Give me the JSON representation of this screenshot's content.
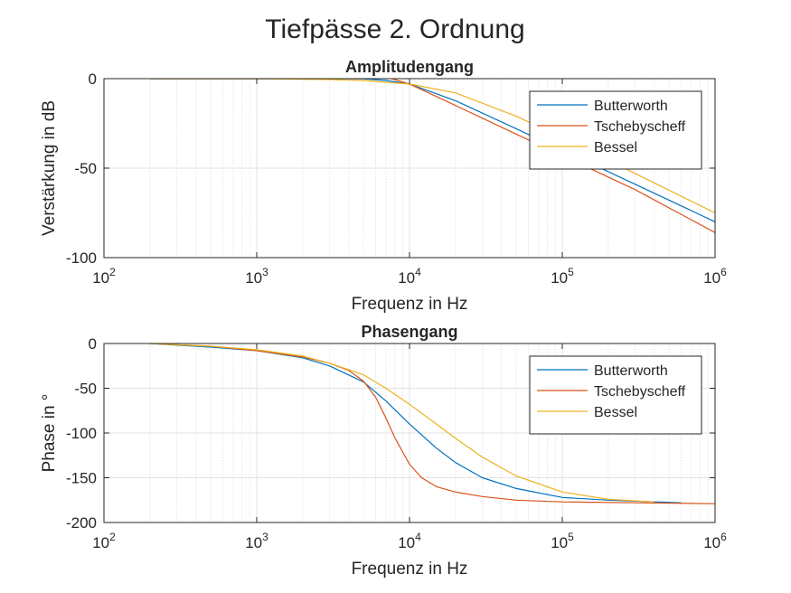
{
  "figure": {
    "title": "Tiefpässe 2. Ordnung"
  },
  "chart_data": [
    {
      "type": "line",
      "title": "Amplitudengang",
      "xlabel": "Frequenz in Hz",
      "ylabel": "Verstärkung in dB",
      "xscale": "log",
      "xlim": [
        100,
        1000000
      ],
      "ylim": [
        -100,
        0
      ],
      "xticks": [
        100,
        1000,
        10000,
        100000,
        1000000
      ],
      "xtick_labels": [
        {
          "base": "10",
          "exp": "2"
        },
        {
          "base": "10",
          "exp": "3"
        },
        {
          "base": "10",
          "exp": "4"
        },
        {
          "base": "10",
          "exp": "5"
        },
        {
          "base": "10",
          "exp": "6"
        }
      ],
      "yticks": [
        0,
        -50,
        -100
      ],
      "ytick_labels": [
        "0",
        "-50",
        "-100"
      ],
      "grid": true,
      "legend_position": "top-right",
      "series": [
        {
          "name": "Butterworth",
          "color": "#0072BD",
          "x": [
            200,
            1000,
            3000,
            5000,
            7000,
            10000,
            20000,
            50000,
            100000,
            300000,
            1000000
          ],
          "y": [
            0,
            0,
            0,
            -0.1,
            -1,
            -3,
            -12.3,
            -28,
            -40,
            -59,
            -80
          ]
        },
        {
          "name": "Tschebyscheff",
          "color": "#D95319",
          "x": [
            200,
            1000,
            2000,
            3000,
            4000,
            5000,
            6000,
            7000,
            8000,
            10000,
            20000,
            50000,
            100000,
            300000,
            1000000
          ],
          "y": [
            0,
            0,
            0.3,
            1,
            2,
            2.8,
            2.5,
            1,
            -0.5,
            -3,
            -15,
            -31,
            -43,
            -62,
            -86
          ]
        },
        {
          "name": "Bessel",
          "color": "#EDB120",
          "x": [
            200,
            1000,
            3000,
            5000,
            7000,
            10000,
            20000,
            50000,
            100000,
            300000,
            1000000
          ],
          "y": [
            0,
            0,
            -0.5,
            -1,
            -2,
            -3,
            -8,
            -21,
            -33,
            -53,
            -75
          ]
        }
      ]
    },
    {
      "type": "line",
      "title": "Phasengang",
      "xlabel": "Frequenz in Hz",
      "ylabel": "Phase in °",
      "xscale": "log",
      "xlim": [
        100,
        1000000
      ],
      "ylim": [
        -200,
        0
      ],
      "xticks": [
        100,
        1000,
        10000,
        100000,
        1000000
      ],
      "xtick_labels": [
        {
          "base": "10",
          "exp": "2"
        },
        {
          "base": "10",
          "exp": "3"
        },
        {
          "base": "10",
          "exp": "4"
        },
        {
          "base": "10",
          "exp": "5"
        },
        {
          "base": "10",
          "exp": "6"
        }
      ],
      "yticks": [
        0,
        -50,
        -100,
        -150,
        -200
      ],
      "ytick_labels": [
        "0",
        "-50",
        "-100",
        "-150",
        "-200"
      ],
      "grid": true,
      "legend_position": "top-right",
      "series": [
        {
          "name": "Butterworth",
          "color": "#0072BD",
          "x": [
            200,
            500,
            1000,
            2000,
            3000,
            5000,
            7000,
            10000,
            15000,
            20000,
            30000,
            50000,
            100000,
            200000,
            600000
          ],
          "y": [
            0,
            -4,
            -8,
            -16,
            -25,
            -43,
            -64,
            -90,
            -117,
            -133,
            -150,
            -162,
            -172,
            -175,
            -178
          ]
        },
        {
          "name": "Tschebyscheff",
          "color": "#D95319",
          "x": [
            200,
            500,
            1000,
            2000,
            3000,
            4000,
            5000,
            6000,
            7000,
            8000,
            10000,
            12000,
            15000,
            20000,
            30000,
            50000,
            100000,
            300000,
            1000000
          ],
          "y": [
            0,
            -3,
            -8,
            -15,
            -22,
            -30,
            -42,
            -60,
            -83,
            -105,
            -135,
            -150,
            -160,
            -166,
            -171,
            -175,
            -177,
            -178,
            -179
          ]
        },
        {
          "name": "Bessel",
          "color": "#EDB120",
          "x": [
            200,
            500,
            1000,
            2000,
            3000,
            5000,
            7000,
            10000,
            15000,
            20000,
            30000,
            50000,
            100000,
            200000,
            400000
          ],
          "y": [
            0,
            -3,
            -7,
            -14,
            -22,
            -35,
            -50,
            -68,
            -90,
            -106,
            -127,
            -148,
            -166,
            -174,
            -177
          ]
        }
      ]
    }
  ]
}
